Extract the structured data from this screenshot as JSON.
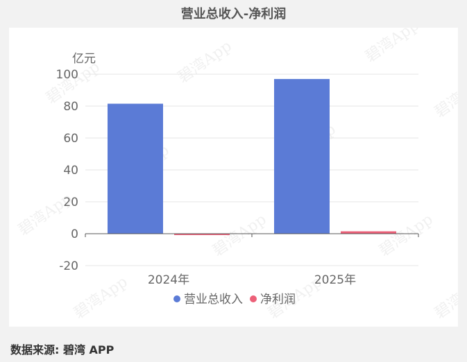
{
  "title": "营业总收入-净利润",
  "source_text": "数据来源: 碧湾 APP",
  "watermark_text": "碧湾App",
  "chart_data": {
    "type": "bar",
    "title": "营业总收入-净利润",
    "ylabel": "亿元",
    "xlabel": "",
    "categories": [
      "2024年",
      "2025年"
    ],
    "series": [
      {
        "name": "营业总收入",
        "color": "#5b7bd6",
        "values": [
          81.5,
          97.0
        ]
      },
      {
        "name": "净利润",
        "color": "#ec6078",
        "values": [
          -0.5,
          1.5
        ]
      }
    ],
    "ylim": [
      -20,
      100
    ],
    "yticks": [
      100,
      80,
      60,
      40,
      20,
      0,
      -20
    ],
    "grid": true,
    "legend": "bottom-center"
  }
}
